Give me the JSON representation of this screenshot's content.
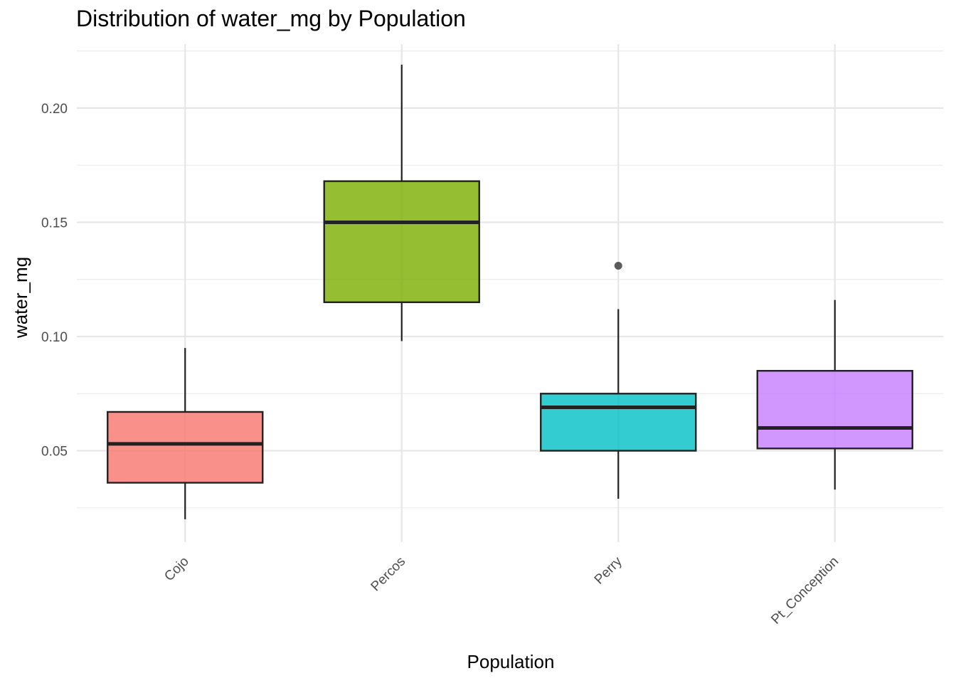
{
  "chart_data": {
    "type": "boxplot",
    "title": "Distribution of water_mg by Population",
    "xlabel": "Population",
    "ylabel": "water_mg",
    "ylim": [
      0.01,
      0.228
    ],
    "yticks": [
      0.05,
      0.1,
      0.15,
      0.2
    ],
    "ytick_labels": [
      "0.05",
      "0.10",
      "0.15",
      "0.20"
    ],
    "grid": true,
    "legend": "none",
    "categories": [
      "Cojo",
      "Percos",
      "Perry",
      "Pt_Conception"
    ],
    "boxes": [
      {
        "category": "Cojo",
        "min": 0.02,
        "q1": 0.036,
        "median": 0.053,
        "q3": 0.067,
        "max": 0.095,
        "outliers": [],
        "color": "#f8766d"
      },
      {
        "category": "Percos",
        "min": 0.098,
        "q1": 0.115,
        "median": 0.15,
        "q3": 0.168,
        "max": 0.219,
        "outliers": [],
        "color": "#7cae00"
      },
      {
        "category": "Perry",
        "min": 0.029,
        "q1": 0.05,
        "median": 0.069,
        "q3": 0.075,
        "max": 0.112,
        "outliers": [
          0.131
        ],
        "color": "#00bfc4"
      },
      {
        "category": "Pt_Conception",
        "min": 0.033,
        "q1": 0.051,
        "median": 0.06,
        "q3": 0.085,
        "max": 0.116,
        "outliers": [],
        "color": "#c77cff"
      }
    ]
  }
}
